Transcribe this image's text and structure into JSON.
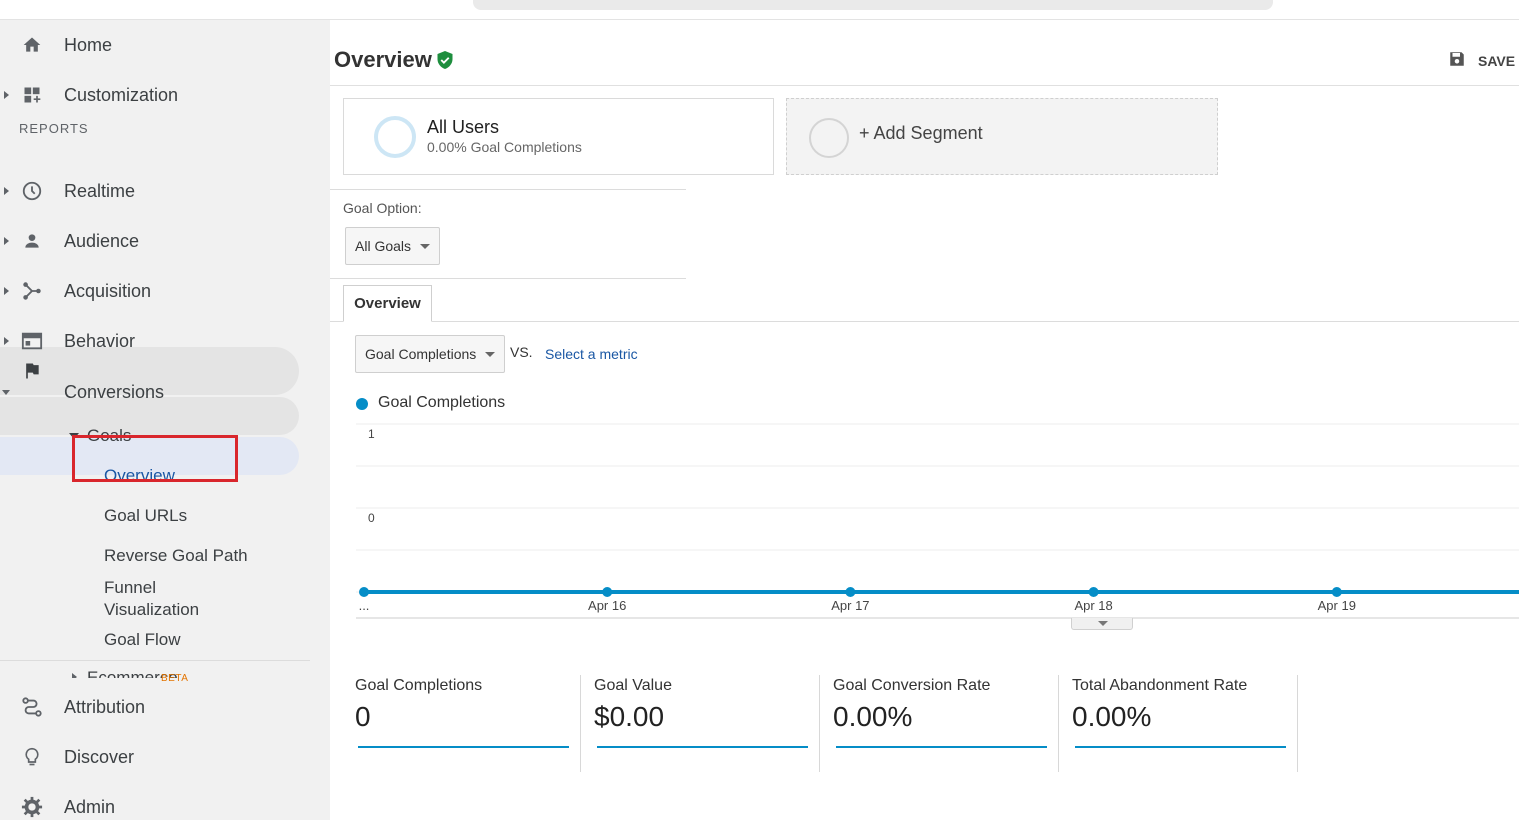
{
  "sidebar": {
    "items": [
      {
        "label": "Home",
        "icon": "home-icon"
      },
      {
        "label": "Customization",
        "icon": "dashboard-grid-icon"
      },
      {
        "label": "Realtime",
        "icon": "clock-icon"
      },
      {
        "label": "Audience",
        "icon": "person-icon"
      },
      {
        "label": "Acquisition",
        "icon": "branch-icon"
      },
      {
        "label": "Behavior",
        "icon": "window-icon"
      },
      {
        "label": "Conversions",
        "icon": "flag-icon"
      }
    ],
    "reports_label": "REPORTS",
    "goals_label": "Goals",
    "goals_items": [
      "Overview",
      "Goal URLs",
      "Reverse Goal Path",
      "Funnel Visualization",
      "Goal Flow"
    ],
    "ecommerce_label": "Ecommerce",
    "bottom_items": [
      {
        "label": "Attribution",
        "icon": "attribution-icon",
        "badge": "BETA"
      },
      {
        "label": "Discover",
        "icon": "lightbulb-icon"
      },
      {
        "label": "Admin",
        "icon": "gear-icon"
      }
    ]
  },
  "header": {
    "title": "Overview",
    "save_label": "SAVE"
  },
  "segments": {
    "active": {
      "name": "All Users",
      "subtitle": "0.00% Goal Completions"
    },
    "add_label": "+ Add Segment"
  },
  "goal_option": {
    "label": "Goal Option:",
    "selected": "All Goals"
  },
  "tabs": {
    "active": "Overview"
  },
  "metric_picker": {
    "selected": "Goal Completions",
    "vs": "VS.",
    "select_link": "Select a metric"
  },
  "colors": {
    "series": "#058dc7",
    "accent_link": "#1a57a4",
    "highlight_box": "#d9262c"
  },
  "chart_data": {
    "type": "line",
    "series": [
      {
        "name": "Goal Completions",
        "values": [
          0,
          0,
          0,
          0,
          0,
          0
        ]
      }
    ],
    "x": [
      "...",
      "Apr 16",
      "Apr 17",
      "Apr 18",
      "Apr 19",
      ""
    ],
    "ylim": [
      0,
      2
    ],
    "yticks": [
      "1",
      "0"
    ],
    "grid": true,
    "legend": "top-left"
  },
  "scorecards": [
    {
      "label": "Goal Completions",
      "value": "0"
    },
    {
      "label": "Goal Value",
      "value": "$0.00"
    },
    {
      "label": "Goal Conversion Rate",
      "value": "0.00%"
    },
    {
      "label": "Total Abandonment Rate",
      "value": "0.00%"
    }
  ]
}
